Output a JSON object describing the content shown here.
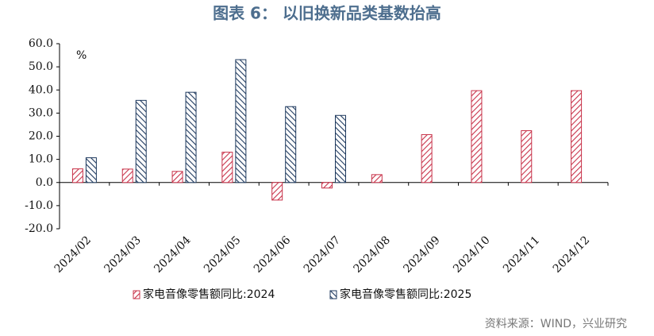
{
  "chart_data": {
    "type": "bar",
    "title": "图表 6： 以旧换新品类基数抬高",
    "unit_label": "%",
    "source": "资料来源：WIND，兴业研究",
    "categories": [
      "2024/02",
      "2024/03",
      "2024/04",
      "2024/05",
      "2024/06",
      "2024/07",
      "2024/08",
      "2024/09",
      "2024/10",
      "2024/11",
      "2024/12"
    ],
    "series": [
      {
        "name": "家电音像零售额同比:2024",
        "color": "#c8334a",
        "values": [
          5.9,
          5.8,
          4.8,
          13.1,
          -7.6,
          -2.4,
          3.4,
          20.7,
          39.7,
          22.4,
          39.7
        ]
      },
      {
        "name": "家电音像零售额同比:2025",
        "color": "#1f3a5f",
        "values": [
          10.7,
          35.5,
          39.0,
          53.1,
          32.8,
          29.0,
          null,
          null,
          null,
          null,
          null
        ]
      }
    ],
    "ylim": [
      -20,
      60
    ],
    "yticks": [
      {
        "value": -20,
        "label": "-20.0"
      },
      {
        "value": -10,
        "label": "-10.0"
      },
      {
        "value": 0,
        "label": "0.0"
      },
      {
        "value": 10,
        "label": "10.0"
      },
      {
        "value": 20,
        "label": "20.0"
      },
      {
        "value": 30,
        "label": "30.0"
      },
      {
        "value": 40,
        "label": "40.0"
      },
      {
        "value": 50,
        "label": "50.0"
      },
      {
        "value": 60,
        "label": "60.0"
      }
    ]
  }
}
